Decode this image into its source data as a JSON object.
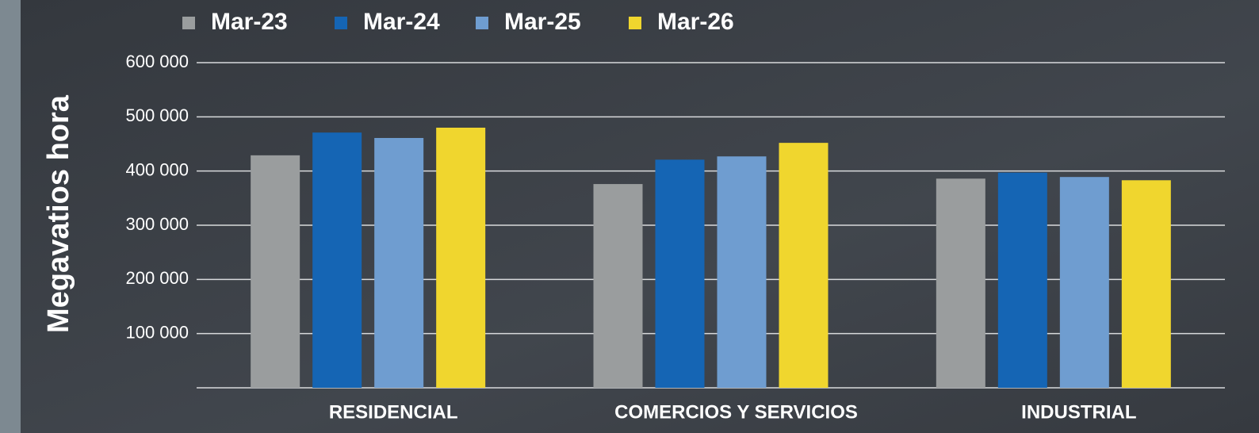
{
  "chart_data": {
    "type": "bar",
    "y_label": "Megavatios hora",
    "categories": [
      "RESIDENCIAL",
      "COMERCIOS Y SERVICIOS",
      "INDUSTRIAL"
    ],
    "series": [
      {
        "name": "Mar-23",
        "color": "#9a9d9e",
        "values": [
          429000,
          376000,
          386000
        ]
      },
      {
        "name": "Mar-24",
        "color": "#1565b4",
        "values": [
          471000,
          421000,
          397000
        ]
      },
      {
        "name": "Mar-25",
        "color": "#6f9dd0",
        "values": [
          461000,
          427000,
          389000
        ]
      },
      {
        "name": "Mar-26",
        "color": "#f0d62e",
        "values": [
          480000,
          452000,
          383000
        ]
      }
    ],
    "ylim": [
      0,
      600000
    ],
    "yticks": [
      {
        "value": 100000,
        "label": "100 000"
      },
      {
        "value": 200000,
        "label": "200 000"
      },
      {
        "value": 300000,
        "label": "300 000"
      },
      {
        "value": 400000,
        "label": "400 000"
      },
      {
        "value": 500000,
        "label": "500 000"
      },
      {
        "value": 600000,
        "label": "600 000"
      }
    ],
    "grid": true,
    "legend": "top"
  }
}
